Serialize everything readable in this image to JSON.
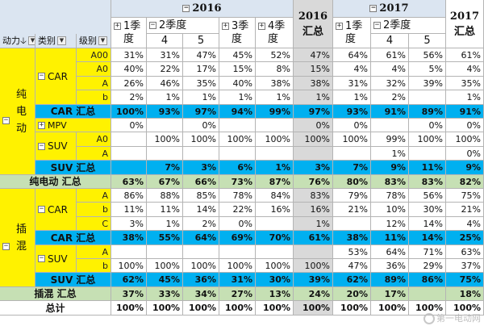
{
  "colors": {
    "yellow": "#fff200",
    "blue_row": "#00b0f0",
    "green_row": "#c6e0b4",
    "gray_col": "#d9d9d9",
    "header_bg": "#dbe5f1",
    "white": "#ffffff"
  },
  "header": {
    "year_2016": "2016",
    "year_2017": "2017",
    "q1_a": "1季",
    "q1_b": "度",
    "q2": "2季度",
    "q3_a": "3季",
    "q3_b": "度",
    "q4_a": "4季",
    "q4_b": "度",
    "m4": "4",
    "m5": "5",
    "total_2016_year": "2016",
    "total_2016_label": "汇总",
    "total_2017_year": "2017",
    "total_2017_label": "汇总",
    "power": "动力🡣",
    "category": "类别",
    "level": "级别",
    "expand_plus": "+",
    "collapse_minus": "−",
    "dropdown": "▼"
  },
  "groups": {
    "ev_a": "纯",
    "ev_b": "电",
    "ev_c": "动",
    "phev_a": "插",
    "phev_b": "混",
    "car": "CAR",
    "mpv": "MPV",
    "suv": "SUV"
  },
  "rows": {
    "ev_car_a00": {
      "level": "A00",
      "v": [
        "31%",
        "31%",
        "47%",
        "45%",
        "52%",
        "47%",
        "64%",
        "61%",
        "56%",
        "61%"
      ]
    },
    "ev_car_a0": {
      "level": "A0",
      "v": [
        "40%",
        "22%",
        "17%",
        "15%",
        "8%",
        "15%",
        "4%",
        "4%",
        "5%",
        "4%"
      ]
    },
    "ev_car_a": {
      "level": "A",
      "v": [
        "26%",
        "46%",
        "35%",
        "40%",
        "38%",
        "38%",
        "31%",
        "32%",
        "39%",
        "35%"
      ]
    },
    "ev_car_b": {
      "level": "b",
      "v": [
        "2%",
        "1%",
        "1%",
        "1%",
        "1%",
        "1%",
        "1%",
        "2%",
        "",
        "1%"
      ]
    },
    "ev_car_total": {
      "label": "CAR 汇总",
      "v": [
        "100%",
        "93%",
        "97%",
        "94%",
        "99%",
        "97%",
        "93%",
        "91%",
        "89%",
        "91%"
      ]
    },
    "ev_mpv": {
      "v": [
        "0%",
        "",
        "0%",
        "",
        "",
        "0%",
        "0%",
        "",
        "0%",
        "0%"
      ]
    },
    "ev_suv_a0": {
      "level": "A0",
      "v": [
        "",
        "100%",
        "100%",
        "100%",
        "100%",
        "100%",
        "100%",
        "99%",
        "100%",
        "100%"
      ]
    },
    "ev_suv_a": {
      "level": "A",
      "v": [
        "",
        "",
        "",
        "",
        "",
        "",
        "",
        "1%",
        "",
        "0%"
      ]
    },
    "ev_suv_total": {
      "label": "SUV 汇总",
      "v": [
        "",
        "7%",
        "3%",
        "6%",
        "1%",
        "3%",
        "7%",
        "9%",
        "11%",
        "9%"
      ]
    },
    "ev_total": {
      "label": "纯电动 汇总",
      "v": [
        "63%",
        "67%",
        "66%",
        "73%",
        "87%",
        "76%",
        "80%",
        "83%",
        "83%",
        "82%"
      ]
    },
    "ph_car_a": {
      "level": "A",
      "v": [
        "86%",
        "88%",
        "85%",
        "78%",
        "84%",
        "83%",
        "79%",
        "78%",
        "56%",
        "75%"
      ]
    },
    "ph_car_b": {
      "level": "b",
      "v": [
        "11%",
        "11%",
        "14%",
        "22%",
        "16%",
        "16%",
        "21%",
        "10%",
        "30%",
        "21%"
      ]
    },
    "ph_car_c": {
      "level": "C",
      "v": [
        "3%",
        "1%",
        "2%",
        "0%",
        "",
        "1%",
        "",
        "12%",
        "14%",
        "4%"
      ]
    },
    "ph_car_total": {
      "label": "CAR 汇总",
      "v": [
        "38%",
        "55%",
        "64%",
        "69%",
        "70%",
        "61%",
        "38%",
        "11%",
        "14%",
        "25%"
      ]
    },
    "ph_suv_a": {
      "level": "A",
      "v": [
        "",
        "",
        "",
        "",
        "",
        "",
        "53%",
        "64%",
        "71%",
        "63%"
      ]
    },
    "ph_suv_b": {
      "level": "b",
      "v": [
        "100%",
        "100%",
        "100%",
        "100%",
        "100%",
        "100%",
        "47%",
        "36%",
        "29%",
        "37%"
      ]
    },
    "ph_suv_total": {
      "label": "SUV 汇总",
      "v": [
        "62%",
        "45%",
        "36%",
        "31%",
        "30%",
        "39%",
        "62%",
        "89%",
        "86%",
        "75%"
      ]
    },
    "ph_total": {
      "label": "插混 汇总",
      "v": [
        "37%",
        "33%",
        "34%",
        "27%",
        "13%",
        "24%",
        "20%",
        "17%",
        "",
        "18%"
      ]
    },
    "grand_total": {
      "label": "总计",
      "v": [
        "100%",
        "100%",
        "100%",
        "100%",
        "100%",
        "100%",
        "100%",
        "100%",
        "100%",
        "100%"
      ]
    }
  },
  "watermark": "第一电动网"
}
